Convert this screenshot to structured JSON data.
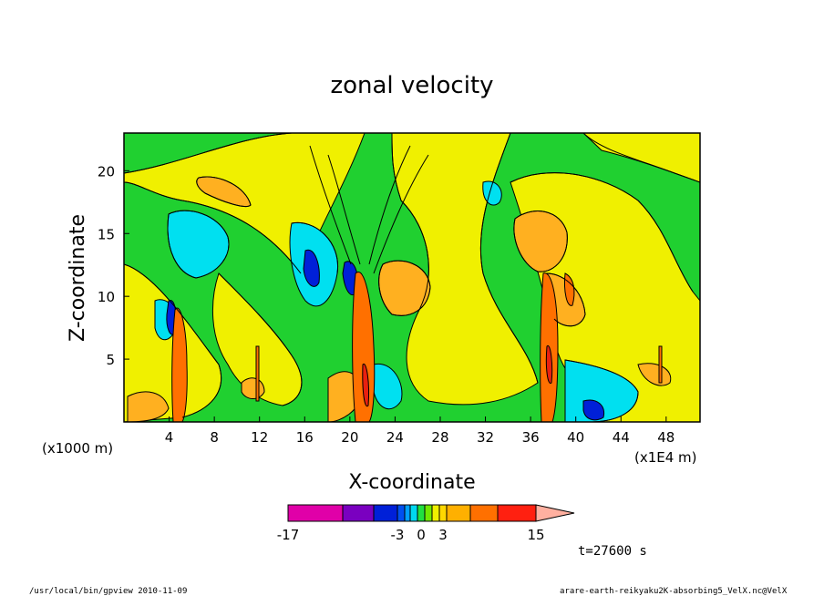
{
  "chart_data": {
    "type": "heatmap",
    "title": "zonal velocity",
    "xlabel": "X-coordinate",
    "ylabel": "Z-coordinate",
    "x_units_note": "(x1E4 m)",
    "y_units_note": "(x1000 m)",
    "xlim": [
      0,
      51
    ],
    "ylim": [
      0,
      23
    ],
    "x_ticks": [
      4,
      8,
      12,
      16,
      20,
      24,
      28,
      32,
      36,
      40,
      44,
      48
    ],
    "y_ticks": [
      5,
      10,
      15,
      20
    ],
    "colorbar": {
      "tick_labels": [
        "-17",
        "-3",
        "0",
        "3",
        "15"
      ],
      "tick_values": [
        -17,
        -3,
        0,
        3,
        15
      ],
      "colors": [
        "#e000a8",
        "#7a00c0",
        "#0020d8",
        "#0050f0",
        "#00a0ff",
        "#00d8f0",
        "#20e040",
        "#70e800",
        "#f0f000",
        "#ffd800",
        "#ffb000",
        "#ff7000",
        "#ff2010",
        "#ff8070",
        "#ffb0a0"
      ]
    },
    "field_colors": {
      "green": "#20d030",
      "yellow": "#f0f000",
      "cyan": "#00e0f0",
      "orange": "#ffb020",
      "blue": "#0020d8",
      "darkorange": "#ff7000",
      "red": "#e82010"
    }
  },
  "annotations": {
    "time": "t=27600 s",
    "footer_left": "/usr/local/bin/gpview  2010-11-09",
    "footer_right": "arare-earth-reikyaku2K-absorbing5_VelX.nc@VelX"
  }
}
